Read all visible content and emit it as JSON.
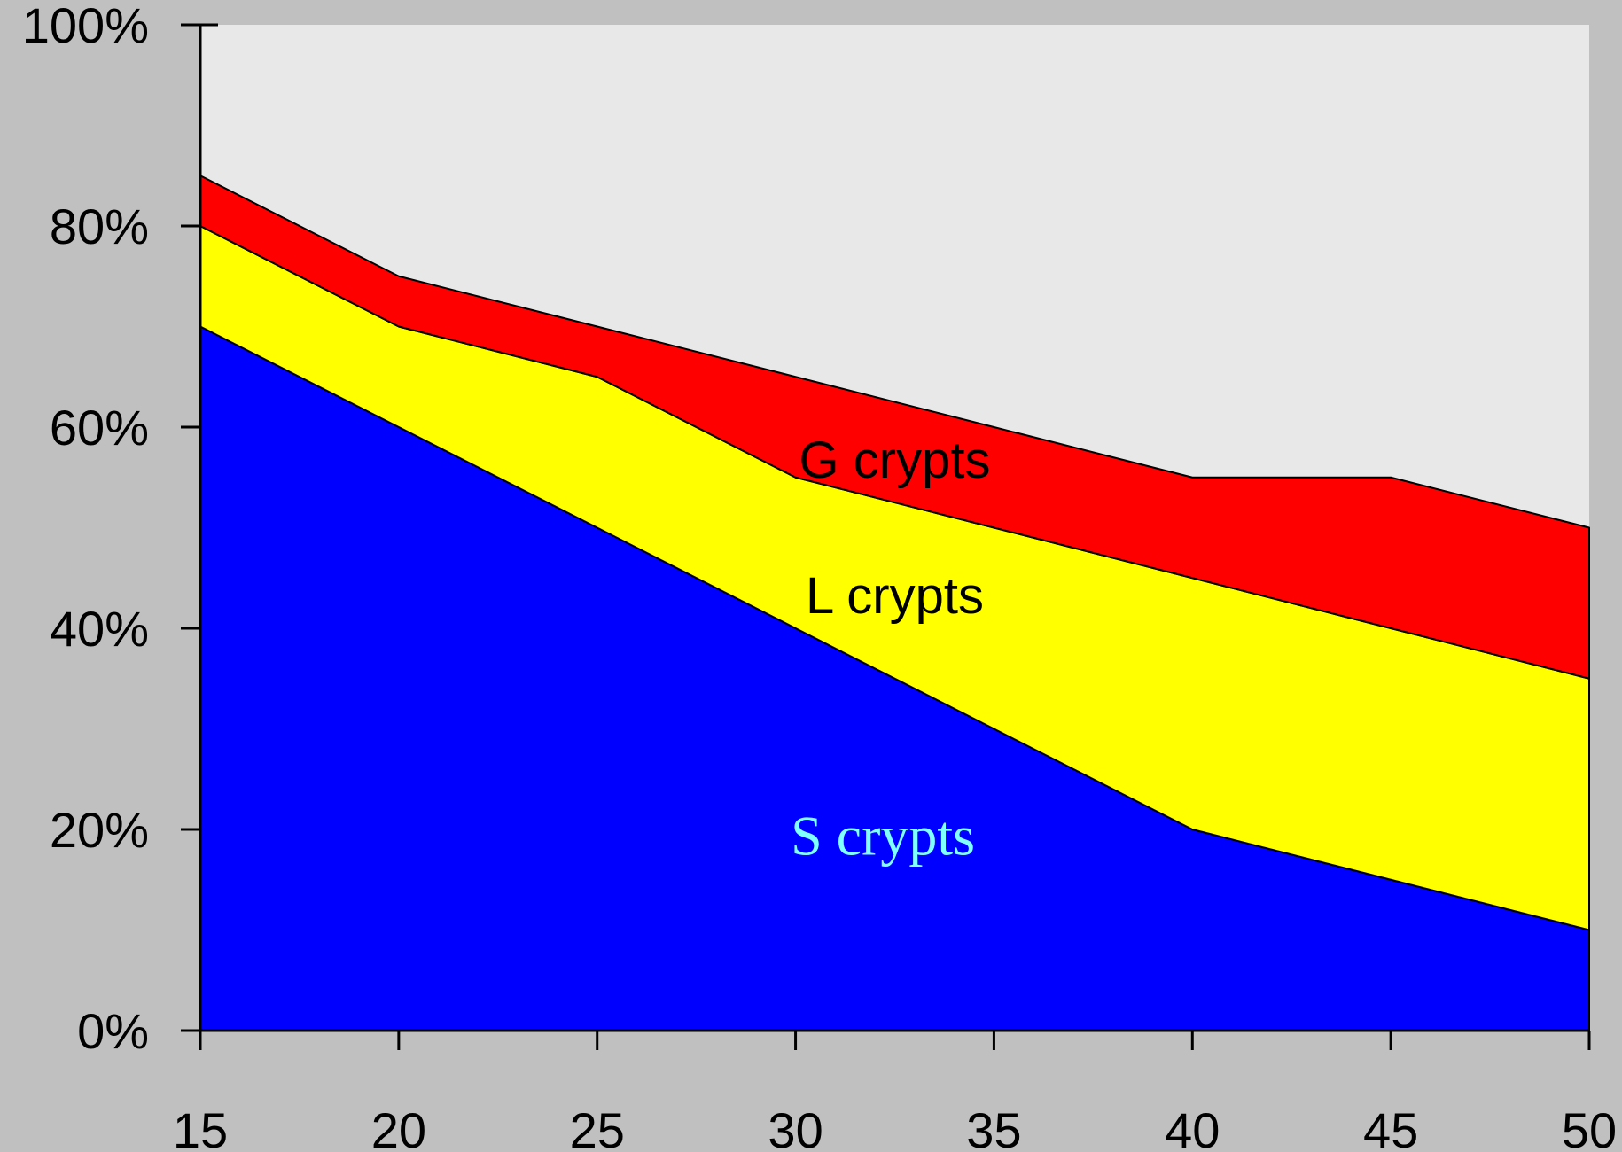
{
  "chart_data": {
    "type": "area",
    "stacked": true,
    "title": "",
    "xlabel": "",
    "ylabel": "",
    "x": [
      15,
      20,
      25,
      30,
      35,
      40,
      45,
      50
    ],
    "xlim": [
      15,
      50
    ],
    "ylim": [
      0,
      100
    ],
    "y_ticks": [
      "0%",
      "20%",
      "40%",
      "60%",
      "80%",
      "100%"
    ],
    "x_ticks": [
      "15",
      "20",
      "25",
      "30",
      "35",
      "40",
      "45",
      "50"
    ],
    "grid": false,
    "legend": "none",
    "series": [
      {
        "name": "S crypts",
        "values": [
          70,
          60,
          50,
          40,
          30,
          20,
          15,
          10
        ],
        "color": "#0000ff",
        "label_color": "#80ffff"
      },
      {
        "name": "L crypts",
        "values": [
          10,
          10,
          15,
          15,
          20,
          25,
          25,
          25
        ],
        "color": "#ffff00",
        "label_color": "#000000"
      },
      {
        "name": "G crypts",
        "values": [
          5,
          5,
          5,
          10,
          10,
          10,
          15,
          15
        ],
        "color": "#ff0000",
        "label_color": "#000000"
      }
    ],
    "plot_background": "#e8e8e8",
    "figure_background": "#c0c0c0"
  }
}
